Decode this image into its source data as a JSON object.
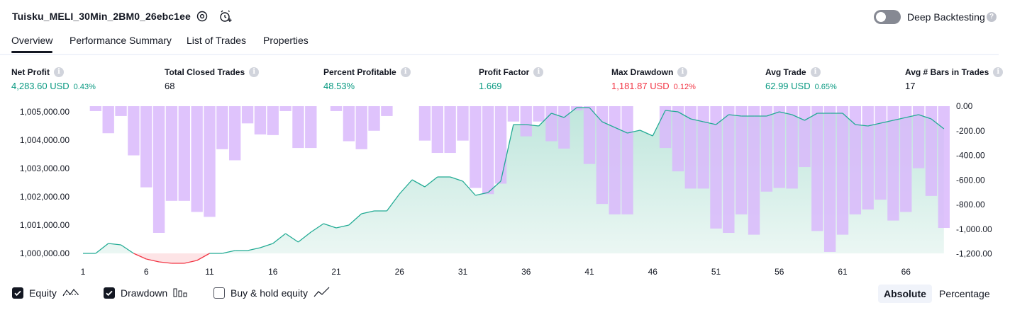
{
  "header": {
    "title": "Tuisku_MELI_30Min_2BM0_26ebc1ee",
    "settings_icon": "gear-icon",
    "alert_icon": "add-alert-clock-icon",
    "deep_backtesting": {
      "label": "Deep Backtesting",
      "enabled": false,
      "help": "?"
    }
  },
  "tabs": [
    {
      "label": "Overview",
      "active": true
    },
    {
      "label": "Performance Summary",
      "active": false
    },
    {
      "label": "List of Trades",
      "active": false
    },
    {
      "label": "Properties",
      "active": false
    }
  ],
  "metrics": [
    {
      "label": "Net Profit",
      "value": "4,283.60 USD",
      "pct": "0.43%",
      "color": "green"
    },
    {
      "label": "Total Closed Trades",
      "value": "68",
      "pct": "",
      "color": "dark"
    },
    {
      "label": "Percent Profitable",
      "value": "48.53%",
      "pct": "",
      "color": "green"
    },
    {
      "label": "Profit Factor",
      "value": "1.669",
      "pct": "",
      "color": "green"
    },
    {
      "label": "Max Drawdown",
      "value": "1,181.87 USD",
      "pct": "0.12%",
      "color": "red"
    },
    {
      "label": "Avg Trade",
      "value": "62.99 USD",
      "pct": "0.65%",
      "color": "green"
    },
    {
      "label": "Avg # Bars in Trades",
      "value": "17",
      "pct": "",
      "color": "dark"
    }
  ],
  "chart_data": {
    "type": "area",
    "x_ticks": [
      "1",
      "6",
      "11",
      "16",
      "21",
      "26",
      "31",
      "36",
      "41",
      "46",
      "51",
      "56",
      "61",
      "66"
    ],
    "left_axis": {
      "ticks": [
        "1,005,000.00",
        "1,004,000.00",
        "1,003,000.00",
        "1,002,000.00",
        "1,001,000.00",
        "1,000,000.00"
      ],
      "tick_values": [
        1005000,
        1004000,
        1003000,
        1002000,
        1001000,
        1000000
      ],
      "range": [
        999900,
        1005200
      ]
    },
    "right_axis": {
      "ticks": [
        "0.00",
        "-200.00",
        "-400.00",
        "-600.00",
        "-800.00",
        "-1,000.00",
        "-1,200.00"
      ],
      "tick_values": [
        0,
        -200,
        -400,
        -600,
        -800,
        -1000,
        -1200
      ],
      "range": [
        -1220,
        0
      ]
    },
    "series": [
      {
        "name": "Equity",
        "type": "line",
        "x": [
          1,
          2,
          3,
          4,
          5,
          6,
          7,
          8,
          9,
          10,
          11,
          12,
          13,
          14,
          15,
          16,
          17,
          18,
          19,
          20,
          21,
          22,
          23,
          24,
          25,
          26,
          27,
          28,
          29,
          30,
          31,
          32,
          33,
          34,
          35,
          36,
          37,
          38,
          39,
          40,
          41,
          42,
          43,
          44,
          45,
          46,
          47,
          48,
          49,
          50,
          51,
          52,
          53,
          54,
          55,
          56,
          57,
          58,
          59,
          60,
          61,
          62,
          63,
          64,
          65,
          66,
          67,
          68,
          69
        ],
        "values": [
          1000000,
          1000000,
          1000350,
          1000300,
          1000000,
          999800,
          999700,
          999650,
          999650,
          999750,
          1000000,
          1000000,
          1000100,
          1000100,
          1000200,
          1000350,
          1000700,
          1000400,
          1000750,
          1001050,
          1000900,
          1001000,
          1001400,
          1001500,
          1001500,
          1002100,
          1002600,
          1002350,
          1002700,
          1002700,
          1002550,
          1002050,
          1002150,
          1002550,
          1004550,
          1004550,
          1004500,
          1004950,
          1004800,
          1005150,
          1005150,
          1004650,
          1004450,
          1004250,
          1004350,
          1004150,
          1005050,
          1005000,
          1004750,
          1004650,
          1004550,
          1004900,
          1004850,
          1004850,
          1004850,
          1005000,
          1004900,
          1004700,
          1004950,
          1004950,
          1004950,
          1004550,
          1004500,
          1004600,
          1004700,
          1004800,
          1004900,
          1004750,
          1004400
        ]
      },
      {
        "name": "Drawdown",
        "type": "bar",
        "x": [
          1,
          2,
          3,
          4,
          5,
          6,
          7,
          8,
          9,
          10,
          11,
          12,
          13,
          14,
          15,
          16,
          17,
          18,
          19,
          20,
          21,
          22,
          23,
          24,
          25,
          26,
          27,
          28,
          29,
          30,
          31,
          32,
          33,
          34,
          35,
          36,
          37,
          38,
          39,
          40,
          41,
          42,
          43,
          44,
          45,
          46,
          47,
          48,
          49,
          50,
          51,
          52,
          53,
          54,
          55,
          56,
          57,
          58,
          59,
          60,
          61,
          62,
          63,
          64,
          65,
          66,
          67,
          68,
          69
        ],
        "values": [
          0,
          -40,
          -220,
          -80,
          -400,
          -660,
          -1030,
          -770,
          -770,
          -860,
          -900,
          -350,
          -440,
          -140,
          -230,
          -235,
          -40,
          -340,
          -340,
          0,
          -40,
          -285,
          -350,
          -200,
          -80,
          0,
          0,
          -280,
          -380,
          -380,
          -280,
          -665,
          -715,
          -630,
          -125,
          -245,
          -125,
          -285,
          -345,
          -35,
          -470,
          -795,
          -880,
          -880,
          0,
          0,
          -340,
          -530,
          -670,
          -670,
          -995,
          -1030,
          -880,
          -1045,
          -695,
          -665,
          -670,
          -495,
          -1015,
          -1185,
          -1045,
          -880,
          -840,
          -760,
          -930,
          -860,
          -505,
          -730,
          -990
        ]
      }
    ]
  },
  "legend": [
    {
      "label": "Equity",
      "checked": true,
      "icon": "equity-line-icon"
    },
    {
      "label": "Drawdown",
      "checked": true,
      "icon": "drawdown-bars-icon"
    },
    {
      "label": "Buy & hold equity",
      "checked": false,
      "icon": "buy-hold-line-icon"
    }
  ],
  "view_modes": [
    {
      "label": "Absolute",
      "active": true
    },
    {
      "label": "Percentage",
      "active": false
    }
  ],
  "colors": {
    "equity_line": "#22ab94",
    "equity_fill": "#d9f2ec",
    "loss_line": "#f23645",
    "drawdown_bar": "#d9b8fb",
    "positive": "#089981",
    "negative": "#f23645"
  }
}
